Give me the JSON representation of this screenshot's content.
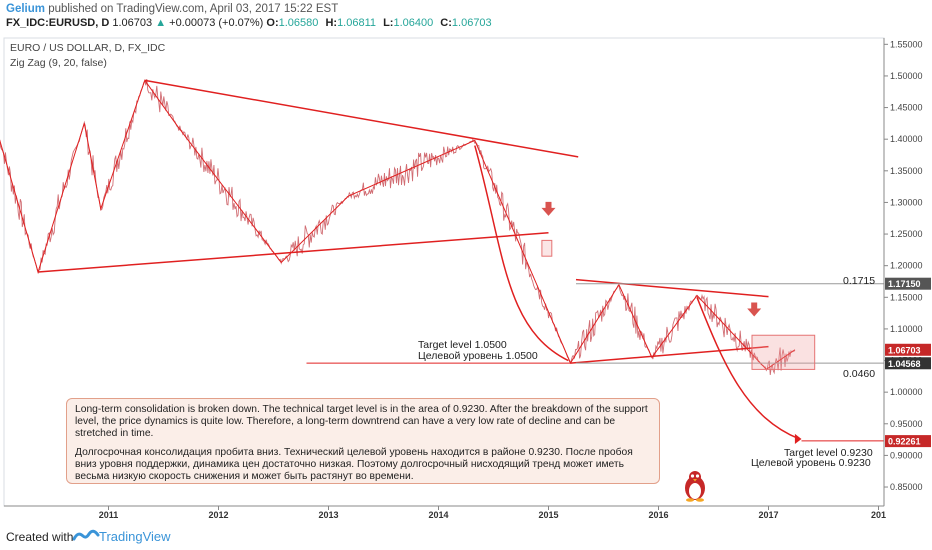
{
  "header": {
    "author": "Gelium",
    "published_text": "published on TradingView.com, April 03, 2017 15:22 EST",
    "symbol": "FX_IDC:EURUSD, D",
    "last": "1.06703",
    "change": "+0.00073 (+0.07%)",
    "open_label": "O:",
    "open": "1.06580",
    "high_label": "H:",
    "high": "1.06811",
    "low_label": "L:",
    "low": "1.06400",
    "close_label": "C:",
    "close": "1.06703"
  },
  "chart_data": {
    "type": "line",
    "title": "EURO / US DOLLAR, D, FX_IDC",
    "indicator": "Zig Zag (9, 20, false)",
    "x_tick_labels": [
      "2011",
      "2012",
      "2013",
      "2014",
      "2015",
      "2016",
      "2017",
      "201"
    ],
    "y_tick_labels": [
      "0.85000",
      "0.90000",
      "0.95000",
      "1.00000",
      "1.05000",
      "1.10000",
      "1.15000",
      "1.20000",
      "1.25000",
      "1.30000",
      "1.35000",
      "1.40000",
      "1.45000",
      "1.50000",
      "1.55000"
    ],
    "ylim": [
      0.82,
      1.56
    ],
    "xlim": [
      2010.05,
      2018.05
    ],
    "zigzag": [
      {
        "x": 2010.0,
        "y": 1.405
      },
      {
        "x": 2010.36,
        "y": 1.19
      },
      {
        "x": 2010.78,
        "y": 1.425
      },
      {
        "x": 2010.93,
        "y": 1.29
      },
      {
        "x": 2011.33,
        "y": 1.493
      },
      {
        "x": 2011.63,
        "y": 1.42
      },
      {
        "x": 2012.57,
        "y": 1.205
      },
      {
        "x": 2013.18,
        "y": 1.31
      },
      {
        "x": 2014.33,
        "y": 1.398
      },
      {
        "x": 2015.2,
        "y": 1.046
      },
      {
        "x": 2015.64,
        "y": 1.17
      },
      {
        "x": 2015.94,
        "y": 1.055
      },
      {
        "x": 2016.35,
        "y": 1.153
      },
      {
        "x": 2016.98,
        "y": 1.036
      },
      {
        "x": 2017.24,
        "y": 1.067
      }
    ],
    "trendlines": [
      {
        "x1": 2010.36,
        "y1": 1.19,
        "x2": 2015.0,
        "y2": 1.252
      },
      {
        "x1": 2011.33,
        "y1": 1.493,
        "x2": 2015.27,
        "y2": 1.372
      },
      {
        "x1": 2015.2,
        "y1": 1.046,
        "x2": 2017.0,
        "y2": 1.072
      },
      {
        "x1": 2015.25,
        "y1": 1.178,
        "x2": 2017.0,
        "y2": 1.151
      }
    ],
    "levels": [
      {
        "name": "0.1715",
        "y": 1.1715
      },
      {
        "name": "0.0460",
        "y": 1.046
      },
      {
        "name": "target",
        "y": 0.923
      }
    ],
    "price_tags": [
      {
        "value": "1.17150",
        "y": 1.1715,
        "color": "#555555"
      },
      {
        "value": "1.06703",
        "y": 1.06703,
        "color": "#c62828"
      },
      {
        "value": "1.04568",
        "y": 1.04568,
        "color": "#333333"
      },
      {
        "value": "0.92261",
        "y": 0.92261,
        "color": "#c62828"
      }
    ],
    "arrows_down": [
      {
        "x": 2015.0,
        "y": 1.285
      },
      {
        "x": 2016.87,
        "y": 1.126
      }
    ],
    "annotations": {
      "target_en": "Target level 1.0500",
      "target_ru": "Целевой уровень 1.0500",
      "level_1715": "0.1715",
      "level_0460": "0.0460",
      "target2_en": "Target level 0.9230",
      "target2_ru": "Целевой уровень 0.9230"
    },
    "line_color": "#e02020",
    "price_color": "#c9545a"
  },
  "note": {
    "en": "Long-term consolidation is broken down. The technical target level is in the area of 0.9230. After the breakdown of the support level, the price dynamics is quite low. Therefore, a long-term downtrend can have a very low rate of decline and can be stretched in time.",
    "ru": "Долгосрочная консолидация пробита вниз. Технический целевой уровень находится в районе 0.9230. После пробоя вниз уровня поддержки, динамика цен достаточно низкая. Поэтому долгосрочный нисходящий тренд может иметь весьма низкую скорость снижения и может быть растянут во времени."
  },
  "footer": {
    "created_with": "Created with",
    "brand": "TradingView"
  }
}
